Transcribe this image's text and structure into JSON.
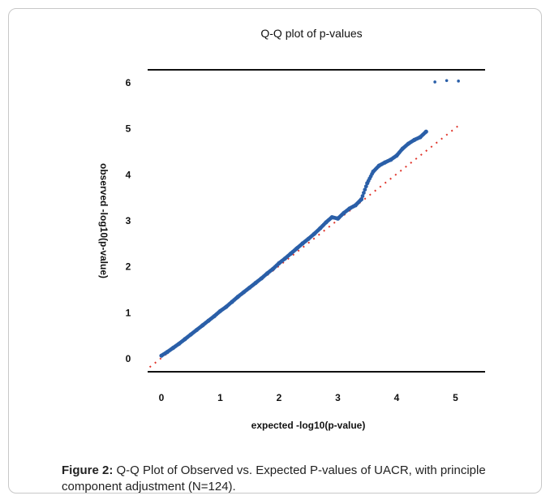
{
  "figure": {
    "caption_label": "Figure 2:",
    "caption_text": " Q-Q Plot of Observed vs. Expected P-values of UACR, with principle component adjustment (N=124)."
  },
  "chart_data": {
    "type": "scatter",
    "title": "Q-Q plot of p-values",
    "xlabel": "expected -log10(p-value)",
    "ylabel": "observed -log10(p-value)",
    "xlim": [
      0,
      5
    ],
    "ylim": [
      0,
      6
    ],
    "x_ticks": [
      "0",
      "1",
      "2",
      "3",
      "4",
      "5"
    ],
    "y_ticks": [
      "0",
      "1",
      "2",
      "3",
      "4",
      "5",
      "6"
    ],
    "grid": false,
    "colors": {
      "points": "#2a5fa8",
      "reference": "#e0352b",
      "axis": "#111111"
    },
    "reference_line": {
      "name": "",
      "x": [
        -0.2,
        5.1
      ],
      "y": [
        -0.2,
        5.1
      ]
    },
    "series": [
      {
        "name": "",
        "x": [
          0.0,
          0.1,
          0.2,
          0.3,
          0.4,
          0.5,
          0.6,
          0.7,
          0.8,
          0.9,
          1.0,
          1.1,
          1.2,
          1.3,
          1.4,
          1.5,
          1.6,
          1.7,
          1.8,
          1.9,
          2.0,
          2.1,
          2.2,
          2.3,
          2.4,
          2.5,
          2.6,
          2.7,
          2.8,
          2.9,
          3.0,
          3.1,
          3.2,
          3.3,
          3.4,
          3.5,
          3.6,
          3.7,
          3.8,
          3.9,
          4.0,
          4.1,
          4.2,
          4.3,
          4.4,
          4.5,
          4.65,
          4.85,
          5.05
        ],
        "y": [
          0.05,
          0.13,
          0.22,
          0.31,
          0.41,
          0.51,
          0.61,
          0.71,
          0.81,
          0.91,
          1.02,
          1.11,
          1.22,
          1.33,
          1.43,
          1.53,
          1.63,
          1.73,
          1.84,
          1.94,
          2.06,
          2.16,
          2.27,
          2.38,
          2.49,
          2.59,
          2.7,
          2.82,
          2.95,
          3.06,
          3.03,
          3.15,
          3.25,
          3.32,
          3.45,
          3.8,
          4.05,
          4.18,
          4.25,
          4.31,
          4.4,
          4.55,
          4.66,
          4.74,
          4.8,
          4.92,
          6.0,
          6.03,
          6.02
        ]
      }
    ]
  }
}
